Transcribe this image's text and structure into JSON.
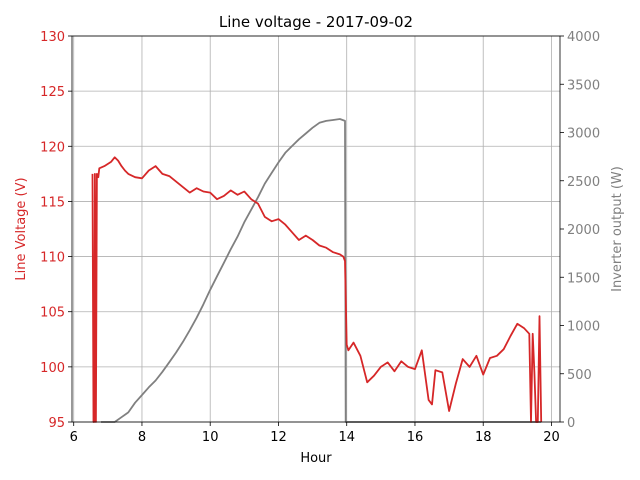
{
  "chart_data": {
    "type": "line",
    "title": "Line voltage - 2017-09-02",
    "xlabel": "Hour",
    "ylabel_left": "Line Voltage (V)",
    "ylabel_right": "Inverter output (W)",
    "xlim": [
      5.95,
      20.25
    ],
    "ylim_left": [
      95,
      130
    ],
    "ylim_right": [
      0,
      4000
    ],
    "x_ticks": [
      "6",
      "8",
      "10",
      "12",
      "14",
      "16",
      "18",
      "20"
    ],
    "y_left_ticks": [
      "95",
      "100",
      "105",
      "110",
      "115",
      "120",
      "125",
      "130"
    ],
    "y_right_ticks": [
      "0",
      "500",
      "1000",
      "1500",
      "2000",
      "2500",
      "3000",
      "3500",
      "4000"
    ],
    "grid": true,
    "colors": {
      "voltage": "#d62728",
      "inverter": "#808080"
    },
    "series": [
      {
        "axis": "left",
        "x": [
          6.55,
          6.58,
          6.6,
          6.62,
          6.65,
          6.68,
          6.72,
          6.75,
          6.9,
          7.1,
          7.2,
          7.3,
          7.4,
          7.5,
          7.6,
          7.8,
          8.0,
          8.2,
          8.4,
          8.6,
          8.8,
          9.0,
          9.2,
          9.4,
          9.6,
          9.8,
          10.0,
          10.2,
          10.4,
          10.6,
          10.8,
          11.0,
          11.2,
          11.4,
          11.6,
          11.8,
          12.0,
          12.2,
          12.4,
          12.6,
          12.8,
          13.0,
          13.2,
          13.4,
          13.6,
          13.8,
          13.9,
          13.95,
          14.0,
          14.05,
          14.2,
          14.4,
          14.6,
          14.8,
          15.0,
          15.2,
          15.4,
          15.6,
          15.8,
          16.0,
          16.2,
          16.4,
          16.5,
          16.6,
          16.8,
          17.0,
          17.2,
          17.4,
          17.6,
          17.8,
          18.0,
          18.2,
          18.4,
          18.6,
          18.8,
          19.0,
          19.2,
          19.35,
          19.4,
          19.45,
          19.5,
          19.55,
          19.6,
          19.65,
          19.7
        ],
        "y": [
          117.5,
          95,
          95,
          117.5,
          95,
          117.5,
          117.2,
          118,
          118.2,
          118.6,
          119,
          118.7,
          118.2,
          117.8,
          117.5,
          117.2,
          117.1,
          117.8,
          118.2,
          117.5,
          117.3,
          116.8,
          116.3,
          115.8,
          116.2,
          115.9,
          115.8,
          115.2,
          115.5,
          116,
          115.6,
          115.9,
          115.2,
          114.8,
          113.6,
          113.2,
          113.4,
          112.9,
          112.2,
          111.5,
          111.9,
          111.5,
          111,
          110.8,
          110.4,
          110.2,
          110,
          109.6,
          102,
          101.5,
          102.2,
          101,
          98.6,
          99.2,
          100,
          100.4,
          99.6,
          100.5,
          100,
          99.8,
          101.5,
          97,
          96.6,
          99.7,
          99.5,
          96,
          98.5,
          100.7,
          100,
          101,
          99.3,
          100.8,
          101,
          101.6,
          102.8,
          103.9,
          103.5,
          103,
          95,
          103,
          99.5,
          95,
          95,
          104.6,
          95
        ]
      },
      {
        "axis": "right",
        "x": [
          6.8,
          7.0,
          7.2,
          7.4,
          7.6,
          7.8,
          8.0,
          8.2,
          8.4,
          8.6,
          8.8,
          9.0,
          9.2,
          9.4,
          9.6,
          9.8,
          10.0,
          10.2,
          10.4,
          10.6,
          10.8,
          11.0,
          11.2,
          11.4,
          11.6,
          11.8,
          12.0,
          12.2,
          12.4,
          12.6,
          12.8,
          13.0,
          13.2,
          13.4,
          13.6,
          13.8,
          13.95,
          13.97,
          14.0,
          14.5,
          15.0,
          15.5,
          16.0,
          16.5,
          17.0,
          17.5,
          18.0,
          18.5,
          19.0,
          19.5,
          19.7
        ],
        "y": [
          0,
          0,
          0,
          50,
          100,
          200,
          280,
          360,
          430,
          520,
          620,
          720,
          830,
          950,
          1080,
          1220,
          1370,
          1510,
          1650,
          1790,
          1920,
          2070,
          2200,
          2330,
          2470,
          2580,
          2690,
          2790,
          2860,
          2930,
          2990,
          3050,
          3100,
          3120,
          3130,
          3140,
          3120,
          0,
          0,
          0,
          0,
          0,
          0,
          0,
          0,
          0,
          0,
          0,
          0,
          0,
          0
        ]
      }
    ]
  }
}
